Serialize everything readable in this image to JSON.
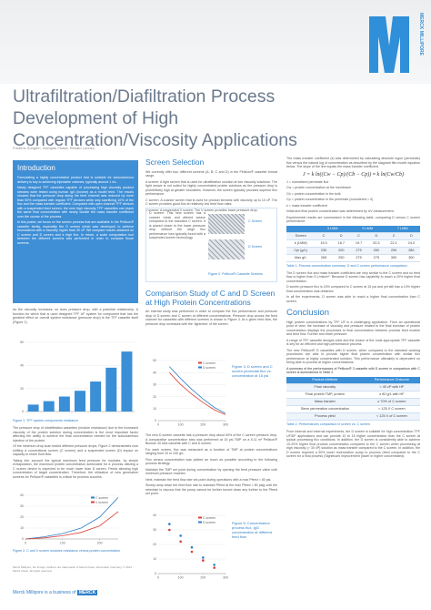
{
  "header": {
    "title": "Ultrafiltration/Diafiltration Process Development of High Concentration/Viscosity Applications",
    "authors": "Frederic Songlen, Xiaoqian Feasa, Renato Loreizo",
    "brand": "MERCK MILLIPORE"
  },
  "intro": {
    "heading": "Introduction",
    "paragraphs": [
      "Formulating a highly concentrated product that is suitable for subcutaneous delivery is key to achieving injectable volumes, typically around 1 mL.",
      "Newly designed TFF cassettes capable of processing high viscosity product streams were tested using human IgG (bovine) as a model feed. The results showed that the pressure drop along the feed channel was reduced by more than 50% compared with regular TFF devices while only sacrificing 10% of the flux and the mass transfer coefficient. Compared with open channel TFF devices with a suspended feed screen, the new high viscosity TFF cassettes can reach the same final concentration with nearly double the mass transfer coefficient over the course of the process.",
      "In this poster, we focus on the screen process that are available in the Pellicon® cassette family, especially the D screen which was developed to achieve formulations with a viscosity higher than 30 cP. We compare results obtained on C screen and D screen and a high flux. In return, a scale computation tool between the different screens was performed in order to compare those screens."
    ]
  },
  "left": {
    "paragraphs": [
      "As the viscosity increases, so does pressure drop, with a potential relationship. A function for which that is used designed TFF UF system for component that has the greatest effect on overall system resistance (pressure drop) is the TFF cassette itself (Figure 1)."
    ],
    "after": [
      "The pressure drop of ultrafiltration cassettes (module resistance) due to the increased viscosity of the protein solution during concentration is the most important factor affecting the ability to achieve the final concentration needed for the subcutaneous injection of the protein.",
      "Of the minimum drop scan tested different pressure drops, Figure 2 demonstrates how shifting a conventional screen (C screen) and a suspended screen (D) impact on capacity to reach fluid flow.",
      "Taking into account the typical maximum feed pressure for modules, by simple extrapolation, the maximum protein concentration achievable for a process utilizing a C screen device is expected to be much lower than D screen. Feeds allowing high concentration of target concentration. Therefore, the utilization of new generation screens for Pellicon® cassettes is critical for process success."
    ],
    "footnote": "Merck Millipore, the M logo, Pellicon are trademarks of Merck KGaA, Darmstadt, Germany. © 2013 Merck KGaA. All rights reserved.",
    "footer": "Merck Millipore is a business of",
    "footer_brand": "MERCK"
  },
  "screen": {
    "heading": "Screen Selection",
    "paragraphs": [
      "We currently offer four different screens (A, B, C and D) in the Pellicon® cassette format range.",
      "A screen: A tight screen that is used for ultrafiltration solution at low viscosity solutions. The tight weave is not suited for highly concentrated protein solutions as the pressure drop is prohibitively high at greater viscosities. However, the screen typically provides superior flux performance.",
      "C screen: A coarser screen that is used for product streams with viscosity up to 10 cP. The C screen provides good flux at relatively low feed flow rates.",
      "V screen: A suspended V screen. The V screen provides lower pressure drop."
    ],
    "box_text": "D screen: This new screen has a coarser mesh and altered weave compared to the standard C screen. It is placed closer to the lower pressure drop without the large flux performance loss typically found with a suspended screen technology.",
    "labels": [
      "C Screen",
      "D Screen"
    ],
    "caption": "Figure 2. Pellicon® Cassette Screens"
  },
  "compare": {
    "heading": "Comparison Study of C and D Screen at High Protein Concentrations",
    "paragraphs": [
      "An internal study was performed in order to compare the flux performance and pressure drop of D screen and C screen at different concentrations. Pressure drop across the feed channel for cassettes with different screens is shown in Figure 3. At a given feed flow, the pressure drop increases with the ‘tightness’ of the screen."
    ],
    "after": [
      "The new D screen cassette has a pressure drop about 50% of the C screen pressure drop. A comparative concentration step was performed at 15 psi TMP on a 0.11 m² Pellicon® Biomax 30 kDa cassette with C and D screen.",
      "For each screen, flux was measured as a function of TMP at protein concentrations ranging from 20 to 240 g/L.",
      "Flux versus concentration was plotted as much as possible according to the following process strategy:",
      "Maintain the TMP set point during concentration by opening the feed pressure valve until minimum pressure reached.",
      "Next, maintain the feed flow rate set-point during operations with a max Pfeed < 80 psi.",
      "Slowly ramp down the feed flow rate to maintain Pfeed at the max Pfeed = 80 psig until the retentate is viscous that the pump cannot be further turned down any further to the Pfeed set point."
    ],
    "fig3": {
      "type": "line",
      "caption": "Figure 3: D screen and C screen permeate flux vs. concentration at 15 psi",
      "x": [
        50,
        100,
        150,
        200,
        250,
        300
      ],
      "xlim": [
        0,
        300
      ],
      "xticks": [
        0,
        100,
        200,
        300
      ],
      "ylim": [
        0,
        50
      ],
      "yticks": [
        0,
        10,
        20,
        30,
        40,
        50
      ],
      "series": [
        {
          "name": "C screen",
          "color": "#d9423a",
          "values": [
            40,
            30,
            22,
            15,
            9,
            5
          ]
        },
        {
          "name": "D screen",
          "color": "#2f7fc8",
          "values": [
            45,
            35,
            26,
            18,
            11,
            6
          ]
        }
      ]
    },
    "fig4": {
      "type": "scatter",
      "caption": "Figure 5: Concentration process flux, IgG concentration at different feed flow",
      "x": [
        50,
        100,
        150,
        200,
        250
      ],
      "xlim": [
        0,
        300
      ],
      "xticks": [
        0,
        100,
        200,
        300
      ],
      "ylim": [
        0,
        40
      ],
      "yticks": [
        0,
        10,
        20,
        30,
        40
      ],
      "series": [
        {
          "name": "C screen",
          "color": "#d9423a",
          "values": [
            30,
            22,
            15,
            9,
            4
          ]
        },
        {
          "name": "D screen",
          "color": "#2f7fc8",
          "values": [
            34,
            26,
            18,
            11,
            6
          ]
        }
      ]
    }
  },
  "left_figs": {
    "fig1": {
      "type": "bar",
      "caption": "Figure 1. TFF system components resistance",
      "values": [
        6,
        9,
        13,
        18,
        26,
        38,
        52
      ],
      "color": "#3a8fd6",
      "ylim": [
        0,
        60
      ],
      "yticks": [
        0,
        20,
        40,
        60
      ]
    },
    "fig2": {
      "type": "line",
      "caption": "Figure 2. C and V screen modules resistance versus protein concentration",
      "x": [
        0,
        50,
        100,
        150,
        200,
        250
      ],
      "xlim": [
        0,
        250
      ],
      "xticks": [
        0,
        100,
        200
      ],
      "ylim": [
        0,
        40
      ],
      "yticks": [
        0,
        10,
        20,
        30,
        40
      ],
      "series": [
        {
          "name": "C screen",
          "color": "#2f7fc8",
          "values": [
            0,
            2,
            5,
            10,
            20,
            38
          ]
        },
        {
          "name": "V screen",
          "color": "#d9423a",
          "values": [
            0,
            1,
            3,
            6,
            12,
            25
          ]
        }
      ]
    }
  },
  "right": {
    "paragraphs": [
      "The mass transfer coefficient (k) was determined by calculating absolute logon (permeate) flux versus the natural log of concentration as described by the stagnant film model equation below. The slope of the line equals the mass transfer coefficient."
    ],
    "formula": "J = k ln((Cw − Cp)/(Cb − Cp)) ≈ k ln(Cw/Cb)",
    "after": [
      "J = normalized permeate flux",
      "Cw = protein concentration at the membrane",
      "Cb = protein concentration in the bulk",
      "Cp = protein concentration in the permeate (considered = 0)",
      "k = mass transfer coefficient",
      "Initial and final protein concentration was determined by UV measurement.",
      "Experimental results are summarized in the following table, comparing D versus C screen performance:"
    ],
    "table1": {
      "header": [
        "",
        "3 LMM",
        "5 LMM",
        "7 LMM"
      ],
      "rows": [
        [
          "Screen",
          "C",
          "D",
          "C",
          "D",
          "C",
          "D"
        ],
        [
          "k (LMM)",
          "15.0",
          "16.7",
          "19.7",
          "20.3",
          "22.1",
          "24.0"
        ],
        [
          "Cpl (g/L)",
          "230",
          "200",
          "275",
          "260",
          "290",
          "280"
        ],
        [
          "Max g/L",
          "265",
          "250",
          "275",
          "275",
          "300",
          "300"
        ]
      ],
      "caption": "Table 1. Process concentration summary: D and C screen performance comparison"
    },
    "mid": [
      "The D screen flux and mass transfer coefficient are very similar to the C screen and so feed flow is higher than 5 L/min/m². Because D screen has capability to reach a 20% higher final concentration.",
      "D screen pressure flux is 15% compared to C screen at 15 psi and yet still has a 10% higher final concentration was obtained.",
      "In all the experiments, D screen was able to reach a higher final concentration than C screen."
    ],
    "conclusion": {
      "heading": "Conclusion",
      "paragraphs": [
        "High protein concentrations by TFF UF is a challenging application. From an operational point of view, the increase of viscosity and pressure related to the final increase of protein concentration displays the processes to final concentration between process feed module and feed flow. Further and lower pressure.",
        "A range of TFF cassette designs exist and the choice of the most appropriate TFF cassette is key for an efficient and high-performance process.",
        "The new Pellicon® D cassettes with D screen, when compared to the standard working procedures are able to provide higher final protein concentration with similar flux performance at highly concentrated solution. This performance ultimately is dependent on being able to process at higher concentrations."
      ]
    },
    "table2": {
      "intro": "A summary of the performances of Pellicon® 3 cassette with D screen in comparison with C screen is summarized in Table 2.",
      "header": [
        "Product Attribute",
        "Performance Outcome"
      ],
      "rows": [
        [
          "Final viscosity",
          "< 40 cP with HF"
        ],
        [
          "Final protein TMP, protein",
          "≥ 80 g/L with HF"
        ],
        [
          "Mass transfer",
          "≥ 70% of C screen"
        ],
        [
          "Sieve permeation concentration",
          "< 125 X C screen"
        ],
        [
          "Process yield",
          "< 125 X of C screen"
        ]
      ],
      "caption": "Table 2. Performances comparison D screen vs. C screen"
    },
    "final": "From internal and external experiments, the D screen is suitable for high concentration TFF UF/DF applications and can provide 10 to 15 higher concentration than the C screen at typical processing flux conditions. In addition, the D screen is consistently able to achieve 10-20% higher final product concentration compared to the C screen when processing at high viscosity (> 30 cP) solution as mass transfer compared to the C screen. In addition, the D screen required a 50% lower recirculation pump to process (feed compared to the C screen for a final process (Significant improvement (lower in higher concentrated)."
  }
}
